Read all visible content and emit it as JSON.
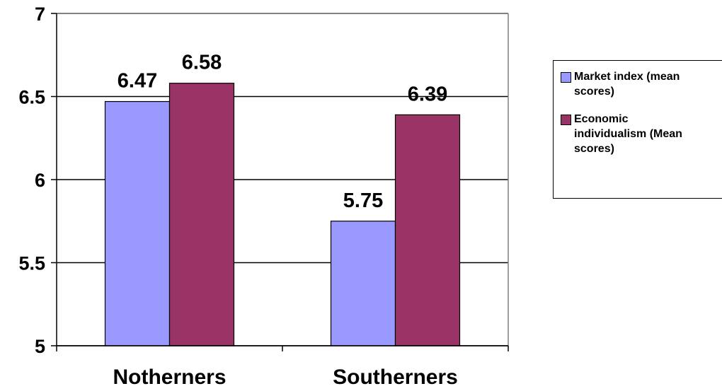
{
  "chart_data": {
    "type": "bar",
    "title": "",
    "xlabel": "",
    "ylabel": "",
    "categories": [
      "Notherners",
      "Southerners"
    ],
    "series": [
      {
        "name": "Market index (mean scores)",
        "values": [
          6.47,
          5.75
        ],
        "labels": [
          "6.47",
          "5.75"
        ],
        "color": "#9999ff"
      },
      {
        "name": "Economic individualism (Mean scores)",
        "values": [
          6.58,
          6.39
        ],
        "labels": [
          "6.58",
          "6.39"
        ],
        "color": "#993366"
      }
    ],
    "ylim": [
      5,
      7
    ],
    "yticks": [
      5,
      5.5,
      6,
      6.5,
      7
    ],
    "ytick_labels": [
      "5",
      "5.5",
      "6",
      "6.5",
      "7"
    ],
    "grid": true,
    "legend_position": "right"
  },
  "legend": {
    "items": [
      {
        "label": "Market index (mean\nscores)",
        "color": "#9999ff"
      },
      {
        "label": "Economic\nindividualism (Mean\nscores)",
        "color": "#993366"
      }
    ]
  }
}
